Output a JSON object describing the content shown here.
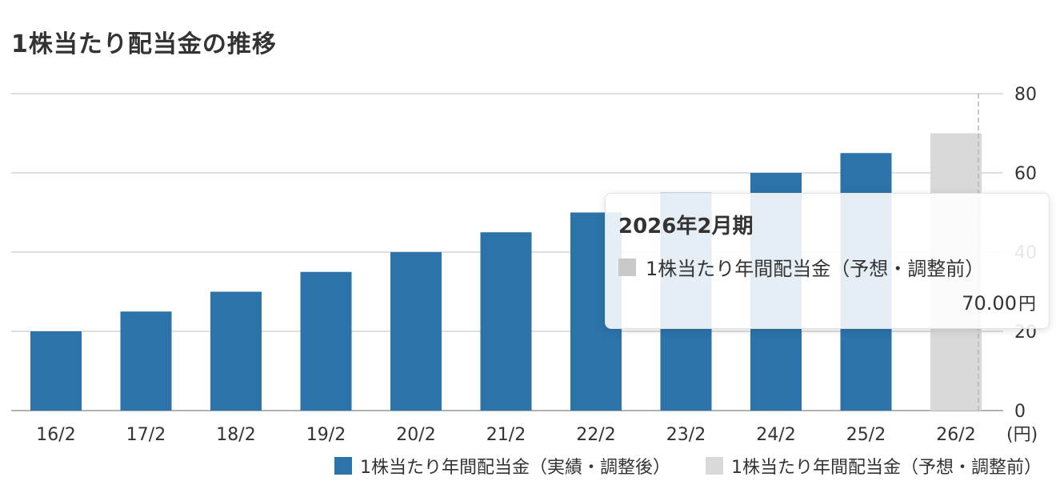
{
  "title": "1株当たり配当金の推移",
  "chart_data": {
    "type": "bar",
    "categories": [
      "16/2",
      "17/2",
      "18/2",
      "19/2",
      "20/2",
      "21/2",
      "22/2",
      "23/2",
      "24/2",
      "25/2",
      "26/2"
    ],
    "series": [
      {
        "name": "1株当たり年間配当金（実績・調整後）",
        "color": "#2c73a9",
        "values": [
          20,
          25,
          30,
          35,
          40,
          45,
          50,
          55,
          60,
          65,
          null
        ]
      },
      {
        "name": "1株当たり年間配当金（予想・調整前）",
        "color": "#d9d9d9",
        "values": [
          null,
          null,
          null,
          null,
          null,
          null,
          null,
          null,
          null,
          null,
          70
        ]
      }
    ],
    "yticks": [
      0,
      20,
      40,
      60,
      80
    ],
    "ylim": [
      0,
      80
    ],
    "yunit": "(円)",
    "grid": true,
    "legend_position": "bottom-right"
  },
  "legend": {
    "actual_label": "1株当たり年間配当金（実績・調整後）",
    "actual_color": "#2c73a9",
    "forecast_label": "1株当たり年間配当金（予想・調整前）",
    "forecast_color": "#d9d9d9"
  },
  "tooltip": {
    "title": "2026年2月期",
    "series_label": "1株当たり年間配当金（予想・調整前）",
    "swatch_color": "#c8c8c8",
    "value": "70.00",
    "unit": "円"
  }
}
